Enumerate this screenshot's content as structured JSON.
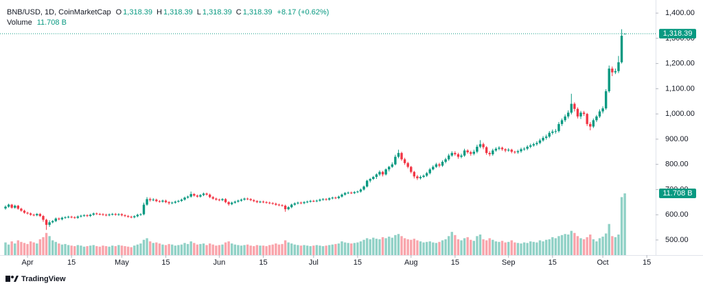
{
  "chart_data": {
    "type": "candlestick",
    "header": {
      "symbol": "BNB/USD, 1D, CoinMarketCap",
      "fields": [
        {
          "key": "O",
          "value": "1,318.39"
        },
        {
          "key": "H",
          "value": "1,318.39"
        },
        {
          "key": "L",
          "value": "1,318.39"
        },
        {
          "key": "C",
          "value": "1,318.39"
        }
      ],
      "change": "+8.17 (+0.62%)",
      "volume_name": "Volume",
      "volume_value": "11.708 B"
    },
    "last_price_label": "1,318.39",
    "last_volume_label": "11.708 B",
    "up_color": "#089981",
    "down_color": "#f23645",
    "grid": false,
    "xlim": [
      -1.75,
      206.8
    ],
    "xticks": [
      {
        "value": 7,
        "label": "Apr"
      },
      {
        "value": 21,
        "label": "15"
      },
      {
        "value": 37,
        "label": "May"
      },
      {
        "value": 51,
        "label": "15"
      },
      {
        "value": 68,
        "label": "Jun"
      },
      {
        "value": 82,
        "label": "15"
      },
      {
        "value": 98,
        "label": "Jul"
      },
      {
        "value": 112,
        "label": "15"
      },
      {
        "value": 129,
        "label": "Aug"
      },
      {
        "value": 143,
        "label": "15"
      },
      {
        "value": 160,
        "label": "Sep"
      },
      {
        "value": 174,
        "label": "15"
      },
      {
        "value": 190,
        "label": "Oct"
      },
      {
        "value": 204,
        "label": "15"
      }
    ],
    "ylim": [
      440,
      1452
    ],
    "yticks": [
      {
        "value": 500,
        "label": "500.00"
      },
      {
        "value": 600,
        "label": "600.00"
      },
      {
        "value": 700,
        "label": "700.00"
      },
      {
        "value": 800,
        "label": "800.00"
      },
      {
        "value": 900,
        "label": "900.00"
      },
      {
        "value": 1000,
        "label": "1,000.00"
      },
      {
        "value": 1100,
        "label": "1,100.00"
      },
      {
        "value": 1200,
        "label": "1,200.00"
      },
      {
        "value": 1300,
        "label": "1,300.00"
      },
      {
        "value": 1400,
        "label": "1,400.00"
      }
    ],
    "ohlc": [
      [
        625,
        637,
        620,
        632
      ],
      [
        632,
        644,
        628,
        640
      ],
      [
        640,
        643,
        624,
        628
      ],
      [
        628,
        640,
        624,
        636
      ],
      [
        636,
        639,
        620,
        624
      ],
      [
        624,
        628,
        612,
        616
      ],
      [
        616,
        620,
        604,
        608
      ],
      [
        608,
        612,
        601,
        605
      ],
      [
        605,
        609,
        596,
        600
      ],
      [
        600,
        604,
        594,
        598
      ],
      [
        598,
        607,
        594,
        603
      ],
      [
        603,
        607,
        591,
        595
      ],
      [
        595,
        599,
        572,
        580
      ],
      [
        580,
        584,
        540,
        560
      ],
      [
        560,
        578,
        552,
        570
      ],
      [
        570,
        579,
        566,
        575
      ],
      [
        575,
        589,
        571,
        585
      ],
      [
        585,
        589,
        578,
        582
      ],
      [
        582,
        592,
        578,
        588
      ],
      [
        588,
        594,
        584,
        590
      ],
      [
        590,
        596,
        586,
        592
      ],
      [
        592,
        596,
        586,
        590
      ],
      [
        590,
        594,
        584,
        588
      ],
      [
        588,
        597,
        584,
        593
      ],
      [
        593,
        600,
        589,
        596
      ],
      [
        596,
        602,
        592,
        598
      ],
      [
        598,
        602,
        591,
        595
      ],
      [
        595,
        604,
        591,
        600
      ],
      [
        600,
        609,
        596,
        605
      ],
      [
        605,
        609,
        599,
        603
      ],
      [
        603,
        607,
        598,
        602
      ],
      [
        602,
        606,
        596,
        600
      ],
      [
        600,
        604,
        594,
        598
      ],
      [
        598,
        605,
        594,
        601
      ],
      [
        601,
        607,
        597,
        603
      ],
      [
        603,
        607,
        596,
        600
      ],
      [
        600,
        606,
        596,
        602
      ],
      [
        602,
        606,
        594,
        598
      ],
      [
        598,
        602,
        591,
        595
      ],
      [
        595,
        599,
        588,
        592
      ],
      [
        592,
        596,
        586,
        590
      ],
      [
        590,
        598,
        586,
        594
      ],
      [
        594,
        604,
        590,
        600
      ],
      [
        600,
        606,
        596,
        602
      ],
      [
        602,
        648,
        598,
        640
      ],
      [
        640,
        670,
        636,
        662
      ],
      [
        662,
        668,
        652,
        658
      ],
      [
        658,
        666,
        654,
        660
      ],
      [
        660,
        664,
        650,
        654
      ],
      [
        654,
        658,
        648,
        652
      ],
      [
        652,
        660,
        648,
        656
      ],
      [
        656,
        660,
        646,
        650
      ],
      [
        650,
        654,
        640,
        646
      ],
      [
        646,
        652,
        642,
        648
      ],
      [
        648,
        656,
        644,
        652
      ],
      [
        652,
        659,
        648,
        655
      ],
      [
        655,
        664,
        651,
        660
      ],
      [
        660,
        672,
        656,
        668
      ],
      [
        668,
        676,
        664,
        672
      ],
      [
        672,
        692,
        668,
        682
      ],
      [
        682,
        686,
        672,
        676
      ],
      [
        676,
        680,
        668,
        672
      ],
      [
        672,
        682,
        668,
        678
      ],
      [
        678,
        688,
        674,
        684
      ],
      [
        684,
        688,
        676,
        680
      ],
      [
        680,
        684,
        666,
        670
      ],
      [
        670,
        674,
        660,
        664
      ],
      [
        664,
        668,
        656,
        660
      ],
      [
        660,
        664,
        654,
        658
      ],
      [
        658,
        666,
        654,
        662
      ],
      [
        662,
        666,
        646,
        650
      ],
      [
        650,
        654,
        636,
        642
      ],
      [
        642,
        652,
        638,
        648
      ],
      [
        648,
        656,
        644,
        652
      ],
      [
        652,
        660,
        648,
        656
      ],
      [
        656,
        664,
        652,
        660
      ],
      [
        660,
        668,
        656,
        664
      ],
      [
        664,
        668,
        658,
        662
      ],
      [
        662,
        666,
        654,
        658
      ],
      [
        658,
        662,
        650,
        654
      ],
      [
        654,
        658,
        646,
        650
      ],
      [
        650,
        656,
        646,
        652
      ],
      [
        652,
        656,
        646,
        650
      ],
      [
        650,
        654,
        644,
        648
      ],
      [
        648,
        652,
        642,
        646
      ],
      [
        646,
        650,
        640,
        644
      ],
      [
        644,
        648,
        636,
        640
      ],
      [
        640,
        644,
        634,
        638
      ],
      [
        638,
        642,
        632,
        636
      ],
      [
        636,
        640,
        612,
        622
      ],
      [
        622,
        634,
        618,
        630
      ],
      [
        630,
        644,
        626,
        640
      ],
      [
        640,
        649,
        636,
        645
      ],
      [
        645,
        652,
        641,
        648
      ],
      [
        648,
        652,
        642,
        646
      ],
      [
        646,
        654,
        642,
        650
      ],
      [
        650,
        656,
        646,
        652
      ],
      [
        652,
        659,
        648,
        655
      ],
      [
        655,
        659,
        650,
        654
      ],
      [
        654,
        660,
        650,
        656
      ],
      [
        656,
        664,
        652,
        660
      ],
      [
        660,
        666,
        656,
        662
      ],
      [
        662,
        666,
        656,
        660
      ],
      [
        660,
        669,
        656,
        665
      ],
      [
        665,
        672,
        661,
        668
      ],
      [
        668,
        672,
        662,
        666
      ],
      [
        666,
        676,
        662,
        672
      ],
      [
        672,
        684,
        668,
        680
      ],
      [
        680,
        690,
        676,
        686
      ],
      [
        686,
        692,
        682,
        688
      ],
      [
        688,
        692,
        682,
        686
      ],
      [
        686,
        694,
        682,
        690
      ],
      [
        690,
        696,
        686,
        692
      ],
      [
        692,
        704,
        688,
        700
      ],
      [
        700,
        716,
        696,
        712
      ],
      [
        712,
        739,
        708,
        735
      ],
      [
        735,
        746,
        728,
        742
      ],
      [
        742,
        754,
        738,
        750
      ],
      [
        750,
        764,
        742,
        760
      ],
      [
        760,
        776,
        754,
        770
      ],
      [
        770,
        774,
        752,
        760
      ],
      [
        760,
        784,
        756,
        780
      ],
      [
        780,
        794,
        772,
        790
      ],
      [
        790,
        808,
        786,
        800
      ],
      [
        800,
        838,
        796,
        830
      ],
      [
        830,
        858,
        824,
        845
      ],
      [
        845,
        850,
        814,
        820
      ],
      [
        820,
        826,
        798,
        805
      ],
      [
        805,
        810,
        784,
        790
      ],
      [
        790,
        794,
        764,
        770
      ],
      [
        770,
        774,
        744,
        752
      ],
      [
        752,
        758,
        738,
        745
      ],
      [
        745,
        756,
        740,
        750
      ],
      [
        750,
        760,
        746,
        755
      ],
      [
        755,
        770,
        750,
        765
      ],
      [
        765,
        786,
        760,
        780
      ],
      [
        780,
        796,
        776,
        790
      ],
      [
        790,
        806,
        786,
        800
      ],
      [
        800,
        806,
        788,
        795
      ],
      [
        795,
        816,
        790,
        810
      ],
      [
        810,
        826,
        804,
        820
      ],
      [
        820,
        842,
        814,
        835
      ],
      [
        835,
        852,
        830,
        845
      ],
      [
        845,
        852,
        834,
        840
      ],
      [
        840,
        846,
        822,
        830
      ],
      [
        830,
        842,
        824,
        835
      ],
      [
        835,
        862,
        830,
        855
      ],
      [
        855,
        860,
        842,
        848
      ],
      [
        848,
        854,
        834,
        842
      ],
      [
        842,
        858,
        836,
        850
      ],
      [
        850,
        878,
        844,
        870
      ],
      [
        870,
        896,
        864,
        880
      ],
      [
        880,
        886,
        860,
        868
      ],
      [
        868,
        872,
        838,
        845
      ],
      [
        845,
        852,
        832,
        840
      ],
      [
        840,
        862,
        834,
        855
      ],
      [
        855,
        868,
        850,
        862
      ],
      [
        862,
        872,
        856,
        866
      ],
      [
        866,
        870,
        854,
        860
      ],
      [
        860,
        864,
        848,
        855
      ],
      [
        855,
        864,
        850,
        858
      ],
      [
        858,
        862,
        844,
        850
      ],
      [
        850,
        854,
        842,
        848
      ],
      [
        848,
        858,
        842,
        852
      ],
      [
        852,
        866,
        846,
        860
      ],
      [
        860,
        868,
        854,
        862
      ],
      [
        862,
        876,
        856,
        870
      ],
      [
        870,
        882,
        864,
        875
      ],
      [
        875,
        886,
        870,
        880
      ],
      [
        880,
        892,
        874,
        885
      ],
      [
        885,
        902,
        880,
        895
      ],
      [
        895,
        912,
        890,
        905
      ],
      [
        905,
        918,
        898,
        910
      ],
      [
        910,
        932,
        904,
        925
      ],
      [
        925,
        938,
        918,
        930
      ],
      [
        930,
        940,
        922,
        932
      ],
      [
        932,
        968,
        926,
        960
      ],
      [
        960,
        982,
        952,
        975
      ],
      [
        975,
        998,
        968,
        990
      ],
      [
        990,
        1014,
        982,
        1005
      ],
      [
        1005,
        1080,
        998,
        1040
      ],
      [
        1040,
        1046,
        1010,
        1020
      ],
      [
        1020,
        1026,
        982,
        990
      ],
      [
        990,
        1012,
        980,
        1005
      ],
      [
        1005,
        1012,
        992,
        1000
      ],
      [
        1000,
        1004,
        952,
        960
      ],
      [
        960,
        968,
        935,
        950
      ],
      [
        950,
        982,
        944,
        975
      ],
      [
        975,
        996,
        968,
        990
      ],
      [
        990,
        1018,
        984,
        1010
      ],
      [
        1010,
        1030,
        1002,
        1022
      ],
      [
        1022,
        1098,
        1016,
        1090
      ],
      [
        1090,
        1192,
        1084,
        1180
      ],
      [
        1180,
        1188,
        1150,
        1165
      ],
      [
        1165,
        1180,
        1158,
        1170
      ],
      [
        1170,
        1230,
        1162,
        1205
      ],
      [
        1205,
        1336,
        1200,
        1310.22
      ],
      [
        1318.39,
        1318.39,
        1318.39,
        1318.39
      ]
    ],
    "volume": [
      2.4,
      2.0,
      2.6,
      2.2,
      2.8,
      2.5,
      2.3,
      2.1,
      2.6,
      2.4,
      2.2,
      3.0,
      3.4,
      4.2,
      3.6,
      2.8,
      2.5,
      2.2,
      2.0,
      2.1,
      1.9,
      1.8,
      1.7,
      1.9,
      1.8,
      1.6,
      1.7,
      1.8,
      1.9,
      1.7,
      1.6,
      1.8,
      1.7,
      1.6,
      1.8,
      1.7,
      1.9,
      1.8,
      1.7,
      1.6,
      1.5,
      1.8,
      2.0,
      2.2,
      2.9,
      3.2,
      2.6,
      2.3,
      2.4,
      2.2,
      2.0,
      1.9,
      2.1,
      2.0,
      1.8,
      1.9,
      2.0,
      2.3,
      2.1,
      2.6,
      2.3,
      2.0,
      2.1,
      2.2,
      1.9,
      2.2,
      2.0,
      1.8,
      1.9,
      2.0,
      2.4,
      2.6,
      2.2,
      2.0,
      1.9,
      1.8,
      1.9,
      2.0,
      1.8,
      1.7,
      1.9,
      1.8,
      1.8,
      1.7,
      1.9,
      2.0,
      2.2,
      2.0,
      2.1,
      2.8,
      2.4,
      2.2,
      2.0,
      1.9,
      1.8,
      1.9,
      1.8,
      1.7,
      1.8,
      1.9,
      1.8,
      1.7,
      1.8,
      1.9,
      2.0,
      2.1,
      2.2,
      2.6,
      2.4,
      2.3,
      2.2,
      2.3,
      2.4,
      2.6,
      2.9,
      3.2,
      3.0,
      3.3,
      3.1,
      3.0,
      3.4,
      3.2,
      3.5,
      3.3,
      3.8,
      4.0,
      3.6,
      3.2,
      3.0,
      2.9,
      3.1,
      2.8,
      2.6,
      2.4,
      2.5,
      2.6,
      2.4,
      2.3,
      2.5,
      2.8,
      3.0,
      3.6,
      4.4,
      3.8,
      3.0,
      2.8,
      3.2,
      3.4,
      2.9,
      2.7,
      3.6,
      3.9,
      3.0,
      2.8,
      3.2,
      2.9,
      2.6,
      2.5,
      2.7,
      2.4,
      2.5,
      2.8,
      2.4,
      2.3,
      2.2,
      2.4,
      2.3,
      2.6,
      2.5,
      2.4,
      2.8,
      2.6,
      2.9,
      3.0,
      3.4,
      3.2,
      3.6,
      3.8,
      4.0,
      3.9,
      4.6,
      4.2,
      3.6,
      3.2,
      3.0,
      3.4,
      3.9,
      3.0,
      2.6,
      3.2,
      3.5,
      4.1,
      5.9,
      3.6,
      3.4,
      3.9,
      11.0,
      11.708
    ],
    "footer": "TradingView"
  }
}
